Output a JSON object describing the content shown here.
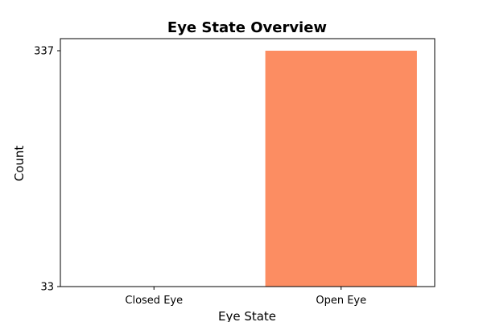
{
  "chart_data": {
    "type": "bar",
    "title": "Eye State Overview",
    "xlabel": "Eye State",
    "ylabel": "Count",
    "categories": [
      "Closed Eye",
      "Open Eye"
    ],
    "values": [
      33,
      337
    ],
    "ylim": [
      33,
      337
    ],
    "ytick_labels": [
      "33",
      "337"
    ],
    "colors": [
      "#fc8d62",
      "#fc8d62"
    ],
    "grid": false,
    "legend": "none"
  }
}
